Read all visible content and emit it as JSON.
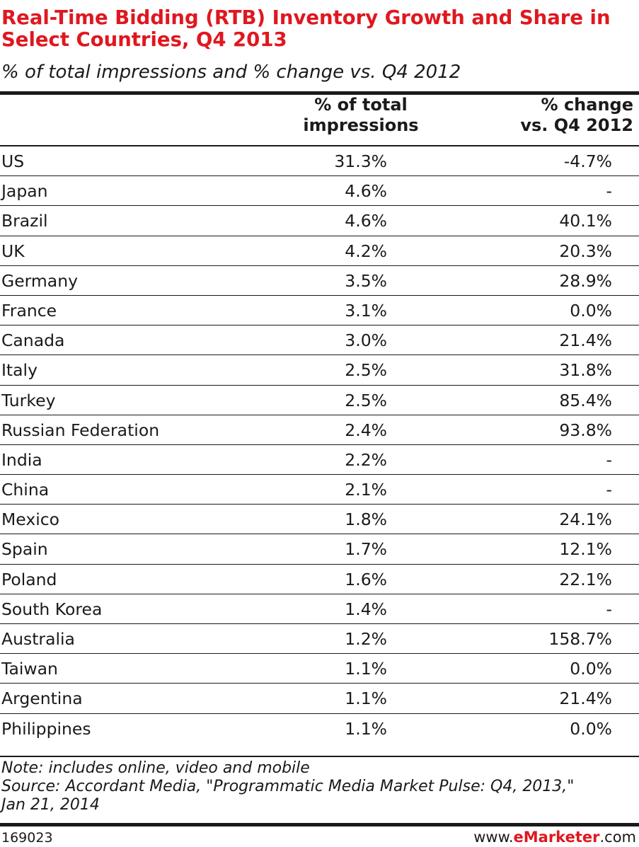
{
  "chart_data": {
    "type": "table",
    "title": "Real-Time Bidding (RTB) Inventory Growth and Share in Select Countries, Q4 2013",
    "subtitle": "% of total impressions and % change vs. Q4 2012",
    "columns": [
      "% of total impressions",
      "% change vs. Q4 2012"
    ],
    "rows": [
      {
        "country": "US",
        "share": "31.3%",
        "change": "-4.7%"
      },
      {
        "country": "Japan",
        "share": "4.6%",
        "change": "-"
      },
      {
        "country": "Brazil",
        "share": "4.6%",
        "change": "40.1%"
      },
      {
        "country": "UK",
        "share": "4.2%",
        "change": "20.3%"
      },
      {
        "country": "Germany",
        "share": "3.5%",
        "change": "28.9%"
      },
      {
        "country": "France",
        "share": "3.1%",
        "change": "0.0%"
      },
      {
        "country": "Canada",
        "share": "3.0%",
        "change": "21.4%"
      },
      {
        "country": "Italy",
        "share": "2.5%",
        "change": "31.8%"
      },
      {
        "country": "Turkey",
        "share": "2.5%",
        "change": "85.4%"
      },
      {
        "country": "Russian Federation",
        "share": "2.4%",
        "change": "93.8%"
      },
      {
        "country": "India",
        "share": "2.2%",
        "change": "-"
      },
      {
        "country": "China",
        "share": "2.1%",
        "change": "-"
      },
      {
        "country": "Mexico",
        "share": "1.8%",
        "change": "24.1%"
      },
      {
        "country": "Spain",
        "share": "1.7%",
        "change": "12.1%"
      },
      {
        "country": "Poland",
        "share": "1.6%",
        "change": "22.1%"
      },
      {
        "country": "South Korea",
        "share": "1.4%",
        "change": "-"
      },
      {
        "country": "Australia",
        "share": "1.2%",
        "change": "158.7%"
      },
      {
        "country": "Taiwan",
        "share": "1.1%",
        "change": "0.0%"
      },
      {
        "country": "Argentina",
        "share": "1.1%",
        "change": "21.4%"
      },
      {
        "country": "Philippines",
        "share": "1.1%",
        "change": "0.0%"
      }
    ]
  },
  "column_headers": {
    "share_line1": "% of total",
    "share_line2": "impressions",
    "change_line1": "% change",
    "change_line2": "vs. Q4 2012"
  },
  "notes": {
    "note": "Note: includes online, video and mobile",
    "source_line1": "Source: Accordant Media, \"Programmatic Media Market Pulse: Q4, 2013,\"",
    "source_line2": "Jan 21, 2014"
  },
  "footer": {
    "chart_id": "169023",
    "brand_prefix": "www.",
    "brand_name": "eMarketer",
    "brand_suffix": ".com"
  },
  "colors": {
    "title": "#e0171f",
    "text": "#1a1a1a",
    "rule": "#1a1a1a"
  }
}
